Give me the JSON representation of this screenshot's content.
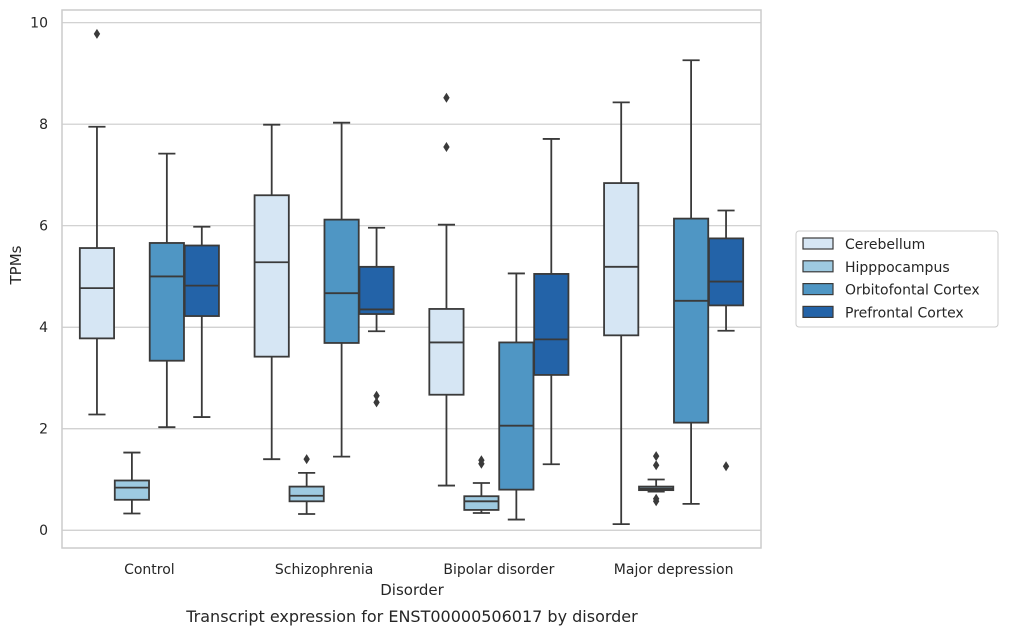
{
  "chart_data": {
    "type": "boxplot",
    "caption": "Transcript expression for ENST00000506017 by disorder",
    "xlabel": "Disorder",
    "ylabel": "TPMs",
    "ylim": [
      -0.35,
      10.25
    ],
    "yticks": [
      0,
      2,
      4,
      6,
      8,
      10
    ],
    "grid": true,
    "legend_position": "right",
    "categories": [
      "Control",
      "Schizophrenia",
      "Bipolar disorder",
      "Major depression"
    ],
    "series": [
      {
        "name": "Cerebellum",
        "color": "#d6e6f4",
        "boxes": [
          {
            "whislo": 2.28,
            "q1": 3.78,
            "med": 4.77,
            "q3": 5.56,
            "whishi": 7.95,
            "fliers": [
              9.78
            ]
          },
          {
            "whislo": 1.4,
            "q1": 3.42,
            "med": 5.28,
            "q3": 6.6,
            "whishi": 7.99,
            "fliers": []
          },
          {
            "whislo": 0.88,
            "q1": 2.67,
            "med": 3.7,
            "q3": 4.36,
            "whishi": 6.02,
            "fliers": [
              7.55,
              8.52
            ]
          },
          {
            "whislo": 0.12,
            "q1": 3.84,
            "med": 5.19,
            "q3": 6.84,
            "whishi": 8.43,
            "fliers": []
          }
        ]
      },
      {
        "name": "Hipppocampus",
        "color": "#9ecae1",
        "boxes": [
          {
            "whislo": 0.33,
            "q1": 0.6,
            "med": 0.84,
            "q3": 0.98,
            "whishi": 1.53,
            "fliers": []
          },
          {
            "whislo": 0.32,
            "q1": 0.57,
            "med": 0.68,
            "q3": 0.86,
            "whishi": 1.13,
            "fliers": [
              1.4
            ]
          },
          {
            "whislo": 0.34,
            "q1": 0.4,
            "med": 0.57,
            "q3": 0.67,
            "whishi": 0.93,
            "fliers": [
              1.31,
              1.38
            ]
          },
          {
            "whislo": 0.76,
            "q1": 0.79,
            "med": 0.82,
            "q3": 0.86,
            "whishi": 1.0,
            "fliers": [
              0.57,
              0.62,
              1.28,
              1.46
            ]
          }
        ]
      },
      {
        "name": "Orbitofontal Cortex",
        "color": "#4f96c4",
        "boxes": [
          {
            "whislo": 2.03,
            "q1": 3.34,
            "med": 5.0,
            "q3": 5.66,
            "whishi": 7.42,
            "fliers": []
          },
          {
            "whislo": 1.45,
            "q1": 3.69,
            "med": 4.67,
            "q3": 6.12,
            "whishi": 8.03,
            "fliers": []
          },
          {
            "whislo": 0.21,
            "q1": 0.8,
            "med": 2.06,
            "q3": 3.7,
            "whishi": 5.06,
            "fliers": []
          },
          {
            "whislo": 0.52,
            "q1": 2.12,
            "med": 4.52,
            "q3": 6.14,
            "whishi": 9.26,
            "fliers": []
          }
        ]
      },
      {
        "name": "Prefrontal Cortex",
        "color": "#2363a8",
        "boxes": [
          {
            "whislo": 2.23,
            "q1": 4.22,
            "med": 4.82,
            "q3": 5.61,
            "whishi": 5.98,
            "fliers": []
          },
          {
            "whislo": 3.92,
            "q1": 4.26,
            "med": 4.35,
            "q3": 5.19,
            "whishi": 5.96,
            "fliers": [
              2.52,
              2.65
            ]
          },
          {
            "whislo": 1.3,
            "q1": 3.06,
            "med": 3.76,
            "q3": 5.05,
            "whishi": 7.71,
            "fliers": []
          },
          {
            "whislo": 3.93,
            "q1": 4.43,
            "med": 4.9,
            "q3": 5.75,
            "whishi": 6.3,
            "fliers": [
              1.26
            ]
          }
        ]
      }
    ]
  }
}
